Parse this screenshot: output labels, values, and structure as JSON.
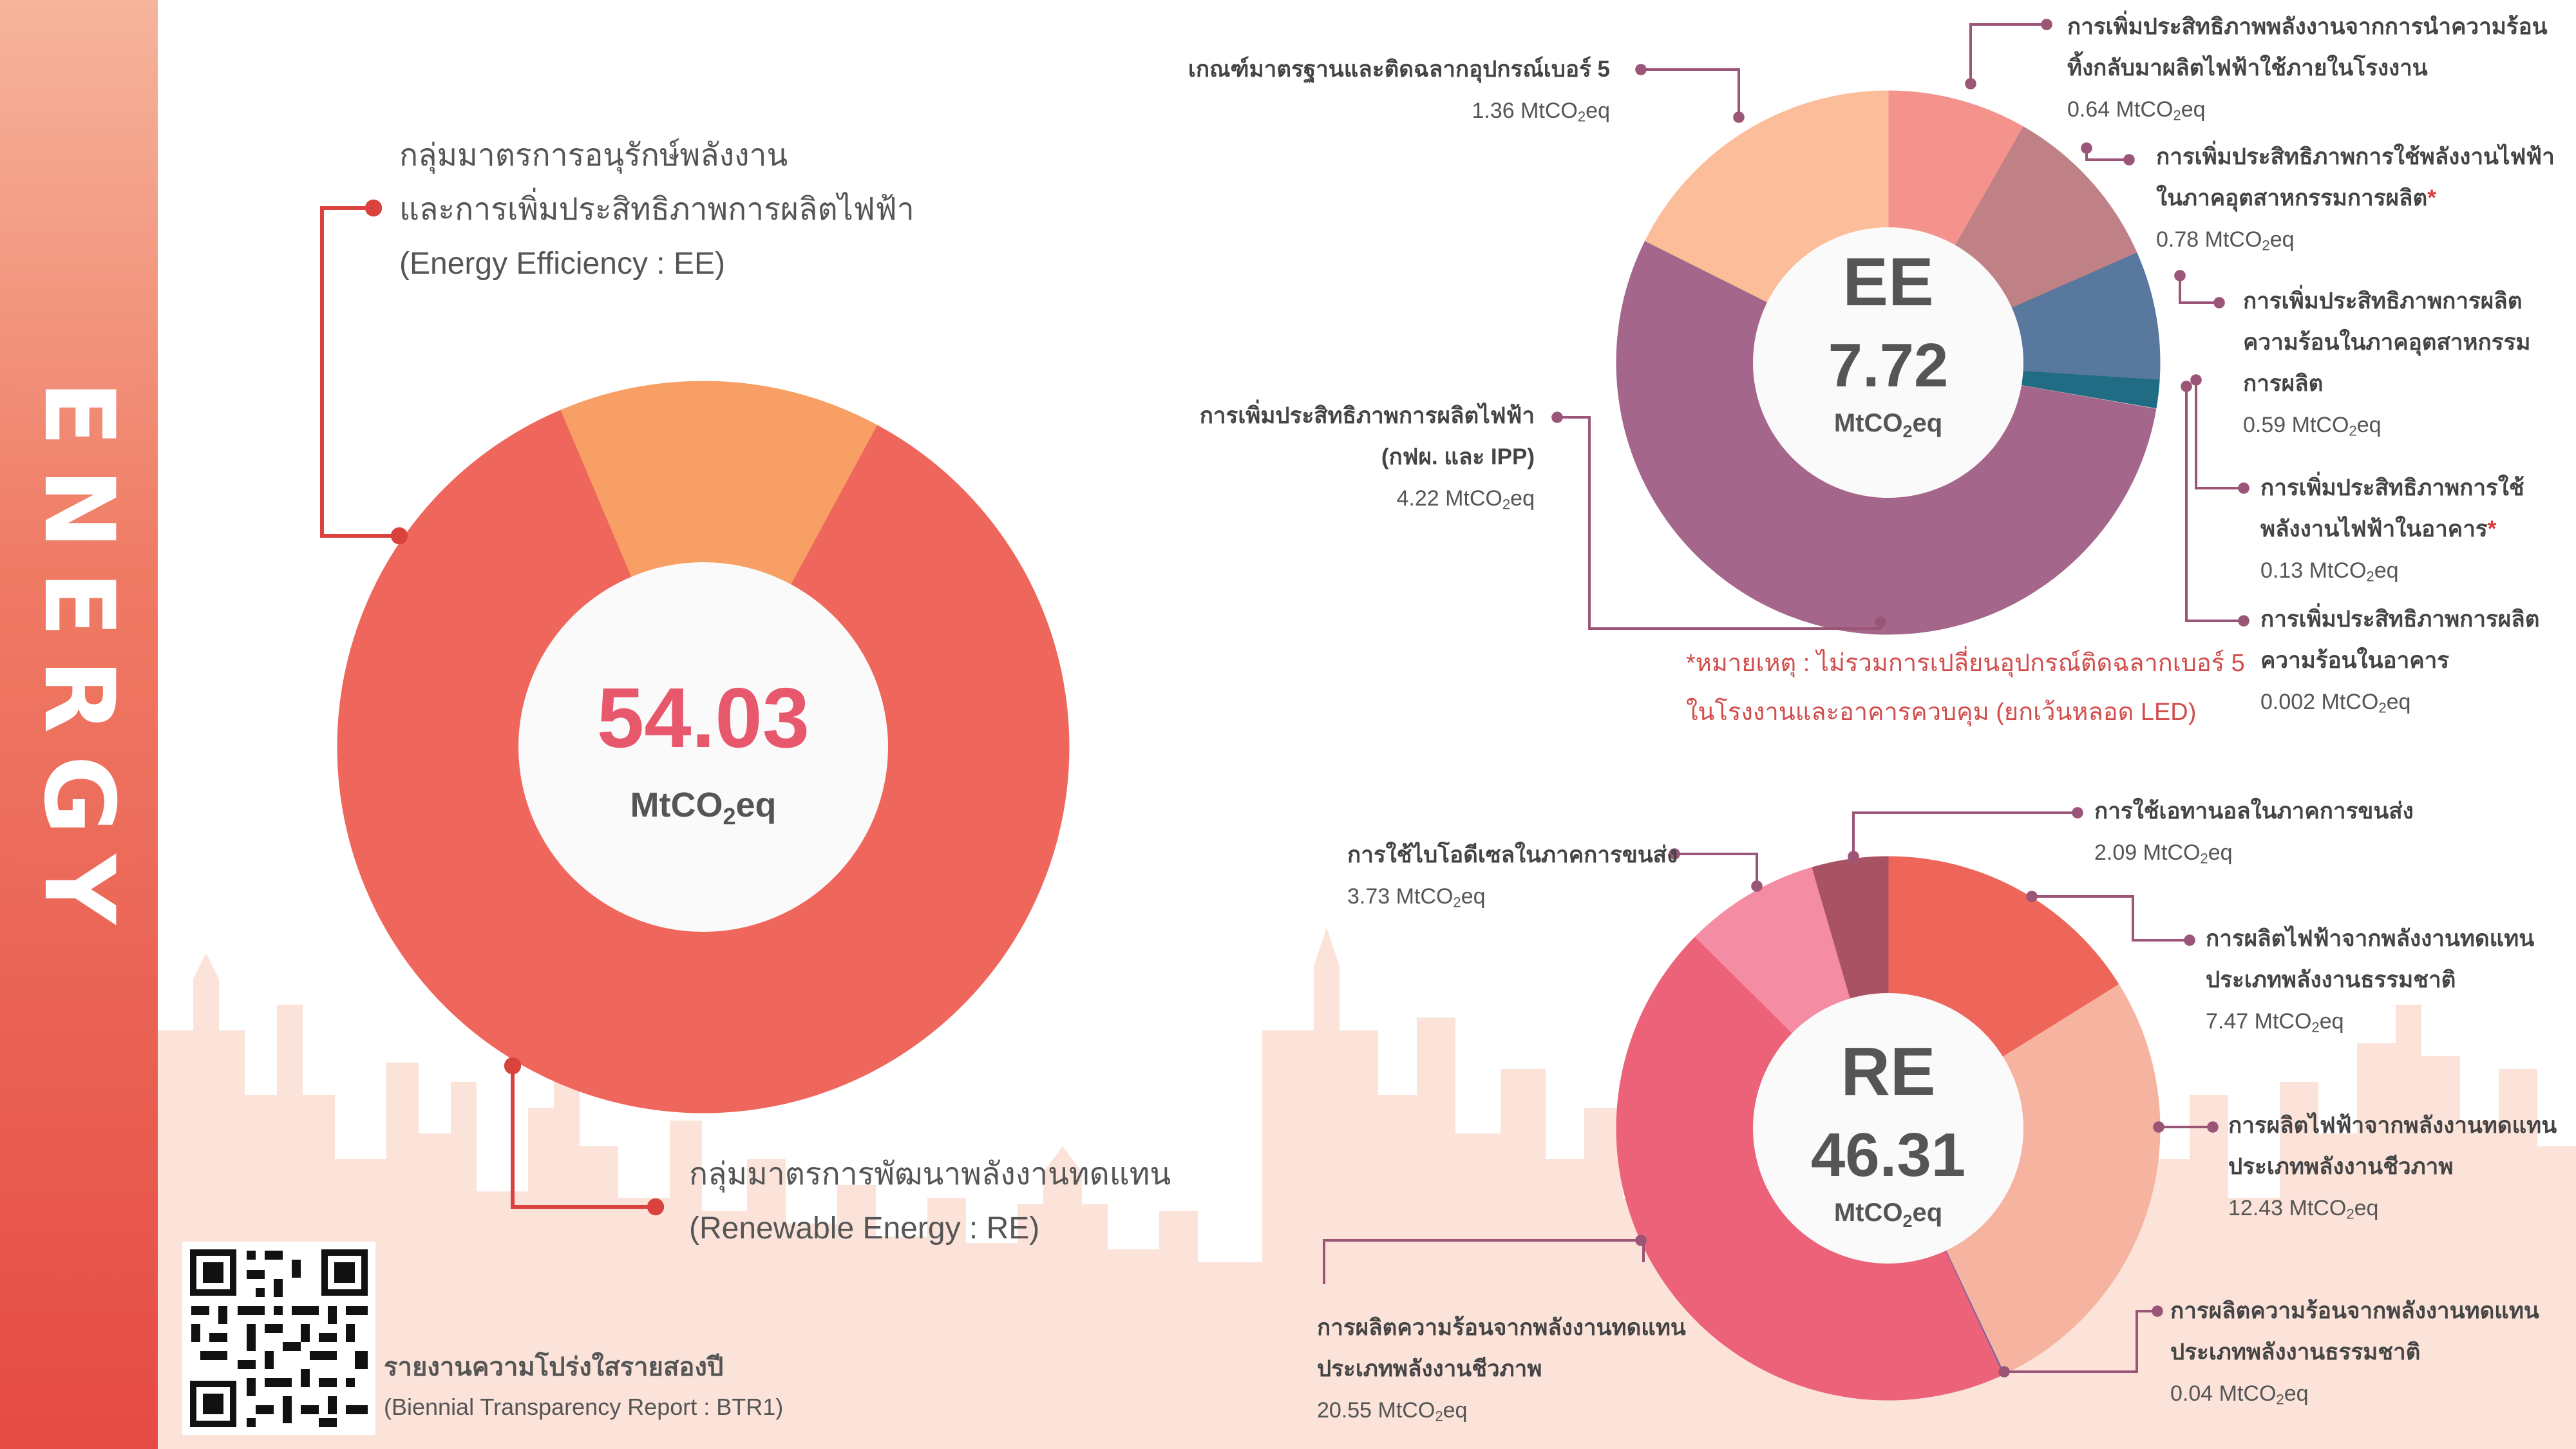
{
  "sidebar": {
    "title": "ENERGY"
  },
  "colors": {
    "accent": "#ef665c",
    "ee_segment": "#f79f64",
    "re_segment": "#ef665c",
    "connector": "#d9423d",
    "small_connector": "#9b5577",
    "skyline": "#fbe3da"
  },
  "main": {
    "center_value": "54.03",
    "center_unit": "MtCO",
    "center_unit_sub": "2",
    "center_unit_tail": "eq",
    "ee_label": [
      "กลุ่มมาตรการอนุรักษ์พลังงาน",
      "และการเพิ่มประสิทธิภาพการผลิตไฟฟ้า",
      "(Energy Efficiency : EE)"
    ],
    "re_label": [
      "กลุ่มมาตรการพัฒนาพลังงานทดแทน",
      "(Renewable Energy : RE)"
    ]
  },
  "ee": {
    "center_title": "EE",
    "center_value": "7.72",
    "center_unit": "MtCO",
    "center_unit_sub": "2",
    "center_unit_tail": "eq",
    "items": [
      {
        "name": [
          "การเพิ่มประสิทธิภาพพลังงานจากการนำความร้อน",
          "ทิ้งกลับมาผลิตไฟฟ้าใช้ภายในโรงงาน"
        ],
        "value_text": "0.64 MtCO",
        "value_tail": "eq"
      },
      {
        "name": [
          "การเพิ่มประสิทธิภาพการใช้พลังงานไฟฟ้า",
          "ในภาคอุตสาหกรรมการผลิต"
        ],
        "value_text": "0.78 MtCO",
        "value_tail": "eq"
      },
      {
        "name": [
          "การเพิ่มประสิทธิภาพการผลิต",
          "ความร้อนในภาคอุตสาหกรรม",
          "การผลิต"
        ],
        "value_text": "0.59 MtCO",
        "value_tail": "eq"
      },
      {
        "name": [
          "การเพิ่มประสิทธิภาพการใช้",
          "พลังงานไฟฟ้าในอาคาร"
        ],
        "value_text": "0.13 MtCO",
        "value_tail": "eq"
      },
      {
        "name": [
          "การเพิ่มประสิทธิภาพการผลิต",
          "ความร้อนในอาคาร"
        ],
        "value_text": "0.002 MtCO",
        "value_tail": "eq"
      },
      {
        "name": [
          "การเพิ่มประสิทธิภาพการผลิตไฟฟ้า",
          "(กฟผ. และ IPP)"
        ],
        "value_text": "4.22 MtCO",
        "value_tail": "eq"
      },
      {
        "name": [
          "เกณฑ์มาตรฐานและติดฉลากอุปกรณ์เบอร์ 5"
        ],
        "value_text": "1.36 MtCO",
        "value_tail": "eq"
      }
    ],
    "note": [
      "*หมายเหตุ : ไม่รวมการเปลี่ยนอุปกรณ์ติดฉลากเบอร์ 5",
      "ในโรงงานและอาคารควบคุม (ยกเว้นหลอด LED)"
    ]
  },
  "re": {
    "center_title": "RE",
    "center_value": "46.31",
    "center_unit": "MtCO",
    "center_unit_sub": "2",
    "center_unit_tail": "eq",
    "items": [
      {
        "name": [
          "การผลิตไฟฟ้าจากพลังงานทดแทน",
          "ประเภทพลังงานธรรมชาติ"
        ],
        "value_text": "7.47 MtCO",
        "value_tail": "eq"
      },
      {
        "name": [
          "การผลิตไฟฟ้าจากพลังงานทดแทน",
          "ประเภทพลังงานชีวภาพ"
        ],
        "value_text": "12.43 MtCO",
        "value_tail": "eq"
      },
      {
        "name": [
          "การผลิตความร้อนจากพลังงานทดแทน",
          "ประเภทพลังงานธรรมชาติ"
        ],
        "value_text": "0.04 MtCO",
        "value_tail": "eq"
      },
      {
        "name": [
          "การผลิตความร้อนจากพลังงานทดแทน",
          "ประเภทพลังงานชีวภาพ"
        ],
        "value_text": "20.55 MtCO",
        "value_tail": "eq"
      },
      {
        "name": [
          "การใช้ไบโอดีเซลในภาคการขนส่ง"
        ],
        "value_text": "3.73 MtCO",
        "value_tail": "eq"
      },
      {
        "name": [
          "การใช้เอทานอลในภาคการขนส่ง"
        ],
        "value_text": "2.09 MtCO",
        "value_tail": "eq"
      }
    ]
  },
  "footer": {
    "title": "รายงานความโปร่งใสรายสองปี",
    "subtitle": "(Biennial Transparency Report :  BTR1)"
  },
  "chart_data": [
    {
      "type": "pie",
      "categories": [
        "Energy Efficiency : EE",
        "Renewable Energy : RE"
      ],
      "values": [
        7.72,
        46.31
      ],
      "colors": [
        "#f79f64",
        "#ef665c"
      ],
      "total": 54.03,
      "unit": "MtCO2eq"
    },
    {
      "type": "pie",
      "title": "EE",
      "total": 7.72,
      "unit": "MtCO2eq",
      "categories": [
        "การเพิ่มประสิทธิภาพพลังงานจากการนำความร้อนทิ้งกลับมาผลิตไฟฟ้าใช้ภายในโรงงาน",
        "การเพิ่มประสิทธิภาพการใช้พลังงานไฟฟ้าในภาคอุตสาหกรรมการผลิต",
        "การเพิ่มประสิทธิภาพการผลิตความร้อนในภาคอุตสาหกรรมการผลิต",
        "การเพิ่มประสิทธิภาพการใช้พลังงานไฟฟ้าในอาคาร",
        "การเพิ่มประสิทธิภาพการผลิตความร้อนในอาคาร",
        "การเพิ่มประสิทธิภาพการผลิตไฟฟ้า (กฟผ. และ IPP)",
        "เกณฑ์มาตรฐานและติดฉลากอุปกรณ์เบอร์ 5"
      ],
      "values": [
        0.64,
        0.78,
        0.59,
        0.13,
        0.002,
        4.22,
        1.36
      ],
      "colors": [
        "#f4928c",
        "#bf8185",
        "#58789e",
        "#1f6c84",
        "#f3d2c7",
        "#a4668a",
        "#fbbd9a"
      ]
    },
    {
      "type": "pie",
      "title": "RE",
      "total": 46.31,
      "unit": "MtCO2eq",
      "categories": [
        "การผลิตไฟฟ้าจากพลังงานทดแทนประเภทพลังงานธรรมชาติ",
        "การผลิตไฟฟ้าจากพลังงานทดแทนประเภทพลังงานชีวภาพ",
        "การผลิตความร้อนจากพลังงานทดแทนประเภทพลังงานธรรมชาติ",
        "การผลิตความร้อนจากพลังงานทดแทนประเภทพลังงานชีวภาพ",
        "การใช้ไบโอดีเซลในภาคการขนส่ง",
        "การใช้เอทานอลในภาคการขนส่ง"
      ],
      "values": [
        7.47,
        12.43,
        0.04,
        20.55,
        3.73,
        2.09
      ],
      "colors": [
        "#ee6659",
        "#f6b4a0",
        "#6d62a3",
        "#ec6279",
        "#f48ca3",
        "#a85264"
      ]
    }
  ]
}
